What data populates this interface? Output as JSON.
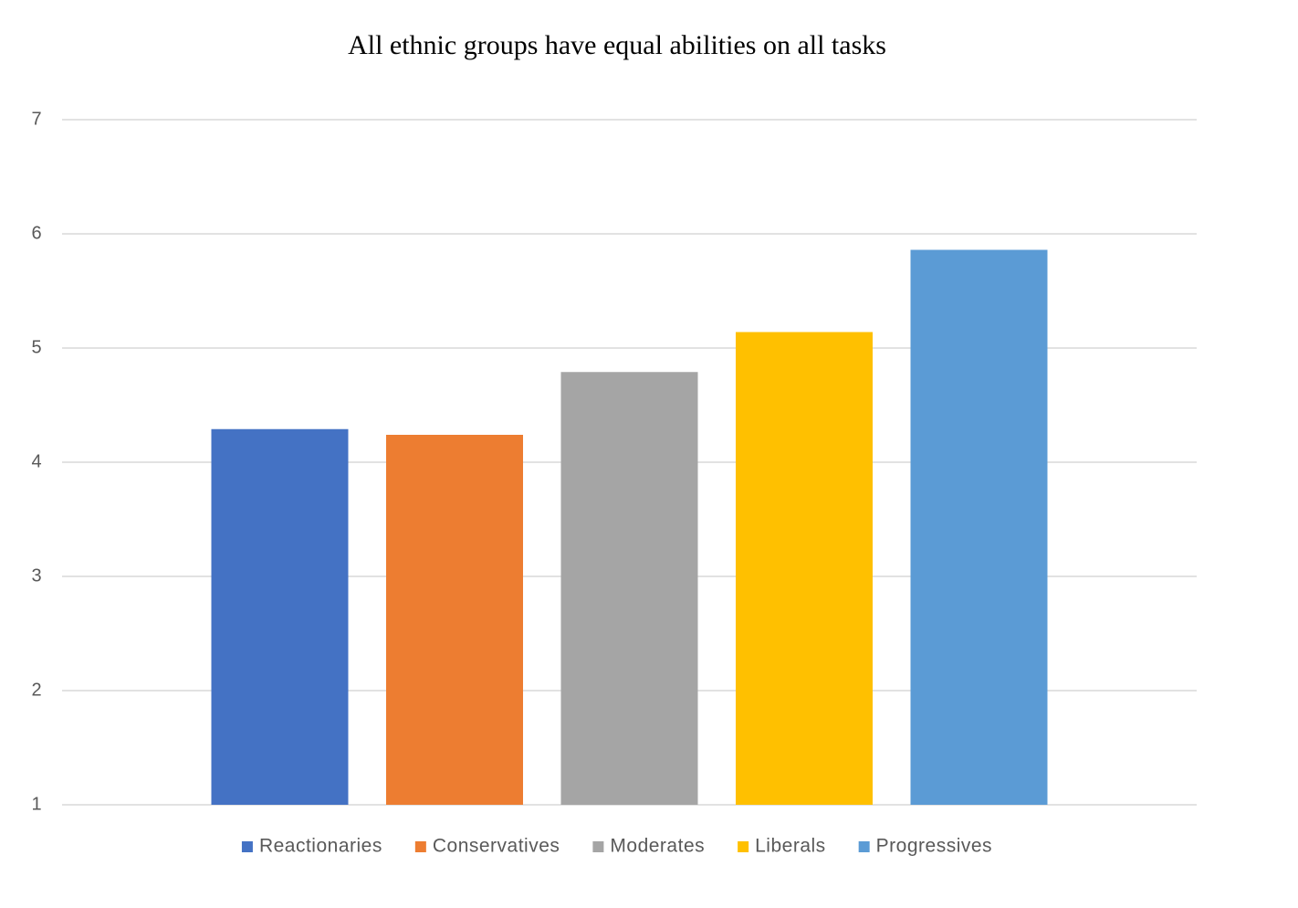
{
  "chart_data": {
    "type": "bar",
    "title": "All ethnic groups have equal abilities on all tasks",
    "categories": [
      null
    ],
    "series": [
      {
        "name": "Reactionaries",
        "color": "#4472c4",
        "values": [
          4.29
        ]
      },
      {
        "name": "Conservatives",
        "color": "#ed7d31",
        "values": [
          4.24
        ]
      },
      {
        "name": "Moderates",
        "color": "#a5a5a5",
        "values": [
          4.79
        ]
      },
      {
        "name": "Liberals",
        "color": "#ffc000",
        "values": [
          5.14
        ]
      },
      {
        "name": "Progressives",
        "color": "#5b9bd5",
        "values": [
          5.86
        ]
      }
    ],
    "ylim": [
      1,
      7
    ],
    "yticks": [
      1,
      2,
      3,
      4,
      5,
      6,
      7
    ],
    "grid": true,
    "legend": "bottom"
  }
}
